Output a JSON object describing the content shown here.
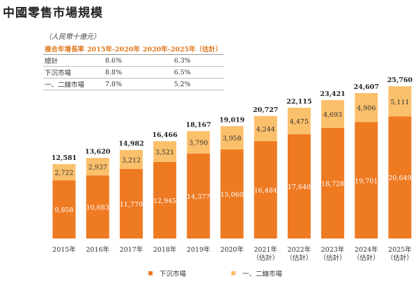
{
  "title": "中國零售市場規模",
  "unit": "（人民幣十億元）",
  "cagr_table": {
    "headers": [
      "複合年增長率",
      "2015年-2020年",
      "2020年-2025年（估計）"
    ],
    "rows": [
      [
        "總計",
        "8.6%",
        "6.3%"
      ],
      [
        "下沉市場",
        "8.8%",
        "6.5%"
      ],
      [
        "一、二線市場",
        "7.8%",
        "5.2%"
      ]
    ]
  },
  "chart_data": {
    "type": "bar",
    "stacked": true,
    "categories": [
      "2015年",
      "2016年",
      "2017年",
      "2018年",
      "2019年",
      "2020年",
      "2021年\n（估計）",
      "2022年\n（估計）",
      "2023年\n（估計）",
      "2024年\n（估計）",
      "2025年\n（估計）"
    ],
    "series": [
      {
        "name": "下沉市場",
        "color": "#ee7a22",
        "values": [
          9858,
          10683,
          11770,
          12945,
          14377,
          15060,
          16484,
          17640,
          18728,
          19701,
          20649
        ]
      },
      {
        "name": "一、二線市場",
        "color": "#fbc06b",
        "values": [
          2722,
          2937,
          3212,
          3521,
          3790,
          3958,
          4244,
          4475,
          4693,
          4906,
          5111
        ]
      }
    ],
    "totals": [
      12581,
      13620,
      14982,
      16466,
      18167,
      19019,
      20727,
      22115,
      23421,
      24607,
      25760
    ],
    "legend_position": "bottom",
    "grid": false
  }
}
